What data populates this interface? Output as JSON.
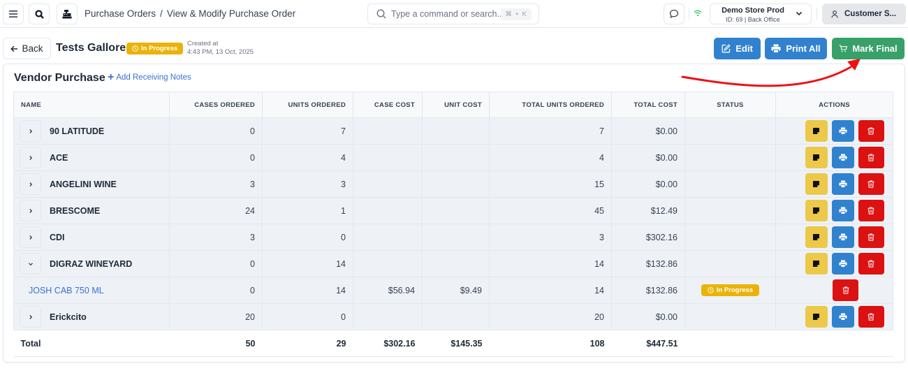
{
  "topbar": {
    "breadcrumb": [
      "Purchase Orders",
      "View & Modify Purchase Order"
    ],
    "breadcrumb_sep": "/",
    "search": {
      "placeholder": "Type a command or search...",
      "shortcut": "⌘ + K"
    },
    "store": {
      "name": "Demo Store Prod",
      "subtitle": "ID: 69 | Back Office"
    },
    "user_label": "Customer S...",
    "icons": [
      "menu-icon",
      "search-icon",
      "cash-register-icon",
      "chat-icon",
      "wifi-icon",
      "chevron-down-icon",
      "user-icon"
    ]
  },
  "header": {
    "back_label": "Back",
    "title": "Tests Gallore",
    "status_badge": "In Progress",
    "created_label": "Created at",
    "created_value": "4:43 PM, 13 Oct, 2025",
    "buttons": {
      "edit": "Edit",
      "print_all": "Print All",
      "mark_final": "Mark Final"
    }
  },
  "card": {
    "title": "Vendor Purchase",
    "add_notes_label": "Add Receiving Notes"
  },
  "table": {
    "columns": [
      "NAME",
      "CASES ORDERED",
      "UNITS ORDERED",
      "CASE COST",
      "UNIT COST",
      "TOTAL UNITS ORDERED",
      "TOTAL COST",
      "STATUS",
      "ACTIONS"
    ],
    "rows": [
      {
        "type": "vendor",
        "expanded": false,
        "name": "90 LATITUDE",
        "cases": "0",
        "units": "7",
        "case_cost": "",
        "unit_cost": "",
        "total_units": "7",
        "total_cost": "$0.00",
        "status": ""
      },
      {
        "type": "vendor",
        "expanded": false,
        "name": "ACE",
        "cases": "0",
        "units": "4",
        "case_cost": "",
        "unit_cost": "",
        "total_units": "4",
        "total_cost": "$0.00",
        "status": ""
      },
      {
        "type": "vendor",
        "expanded": false,
        "name": "ANGELINI WINE",
        "cases": "3",
        "units": "3",
        "case_cost": "",
        "unit_cost": "",
        "total_units": "15",
        "total_cost": "$0.00",
        "status": ""
      },
      {
        "type": "vendor",
        "expanded": false,
        "name": "BRESCOME",
        "cases": "24",
        "units": "1",
        "case_cost": "",
        "unit_cost": "",
        "total_units": "45",
        "total_cost": "$12.49",
        "status": ""
      },
      {
        "type": "vendor",
        "expanded": false,
        "name": "CDI",
        "cases": "3",
        "units": "0",
        "case_cost": "",
        "unit_cost": "",
        "total_units": "3",
        "total_cost": "$302.16",
        "status": ""
      },
      {
        "type": "vendor",
        "expanded": true,
        "name": "DIGRAZ WINEYARD",
        "cases": "0",
        "units": "14",
        "case_cost": "",
        "unit_cost": "",
        "total_units": "14",
        "total_cost": "$132.86",
        "status": ""
      },
      {
        "type": "item",
        "name": "JOSH CAB 750 ML",
        "cases": "0",
        "units": "14",
        "case_cost": "$56.94",
        "unit_cost": "$9.49",
        "total_units": "14",
        "total_cost": "$132.86",
        "status": "In Progress"
      },
      {
        "type": "vendor",
        "expanded": false,
        "name": "Erickcito",
        "cases": "20",
        "units": "0",
        "case_cost": "",
        "unit_cost": "",
        "total_units": "20",
        "total_cost": "$0.00",
        "status": ""
      }
    ],
    "total": {
      "label": "Total",
      "cases": "50",
      "units": "29",
      "case_cost": "$302.16",
      "unit_cost": "$145.35",
      "total_units": "108",
      "total_cost": "$447.51"
    }
  },
  "colors": {
    "primary_blue": "#3182ce",
    "success_green": "#38a169",
    "warning_yellow": "#eab308",
    "note_yellow": "#ecc94b",
    "danger_red": "#dc1111",
    "link_blue": "#3b6fd6",
    "annotation_arrow": "#ee1111"
  }
}
